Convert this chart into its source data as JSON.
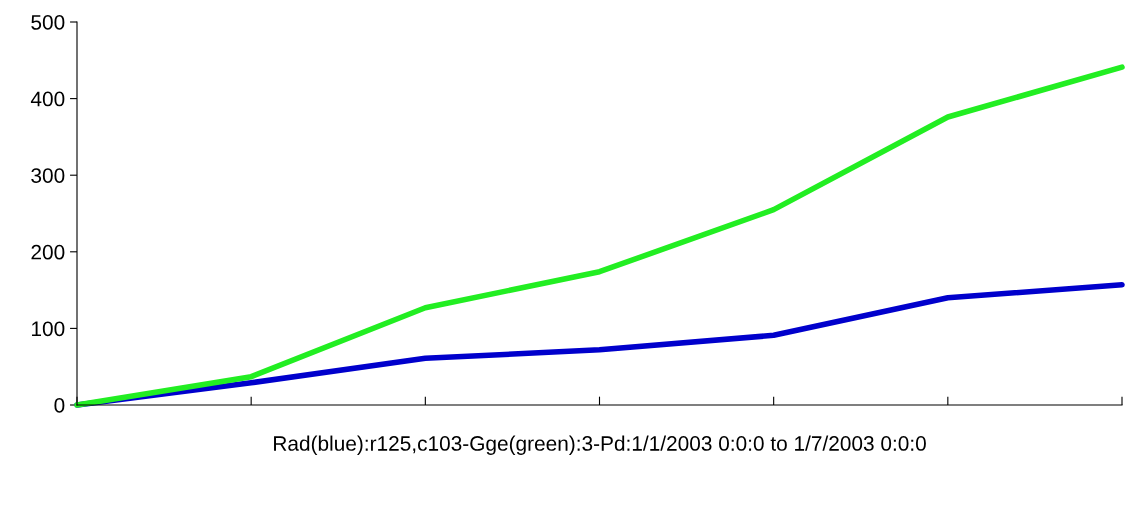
{
  "chart_data": {
    "type": "line",
    "categories": [
      null,
      null,
      null,
      null,
      null,
      null,
      null
    ],
    "series": [
      {
        "color": "#0000cc",
        "values": [
          0,
          29,
          61,
          72,
          91,
          140,
          157
        ]
      },
      {
        "color": "#22ee22",
        "values": [
          0,
          37,
          127,
          174,
          255,
          376,
          441
        ]
      }
    ],
    "xlabel": "Rad(blue):r125,c103-Gge(green):3-Pd:1/1/2003 0:0:0 to 1/7/2003 0:0:0",
    "ylim": [
      0,
      500
    ],
    "yticks": [
      0,
      100,
      200,
      300,
      400,
      500
    ],
    "tick_labels": "y",
    "grid": false,
    "legend": false,
    "marker": "none",
    "line_style": "solid"
  }
}
